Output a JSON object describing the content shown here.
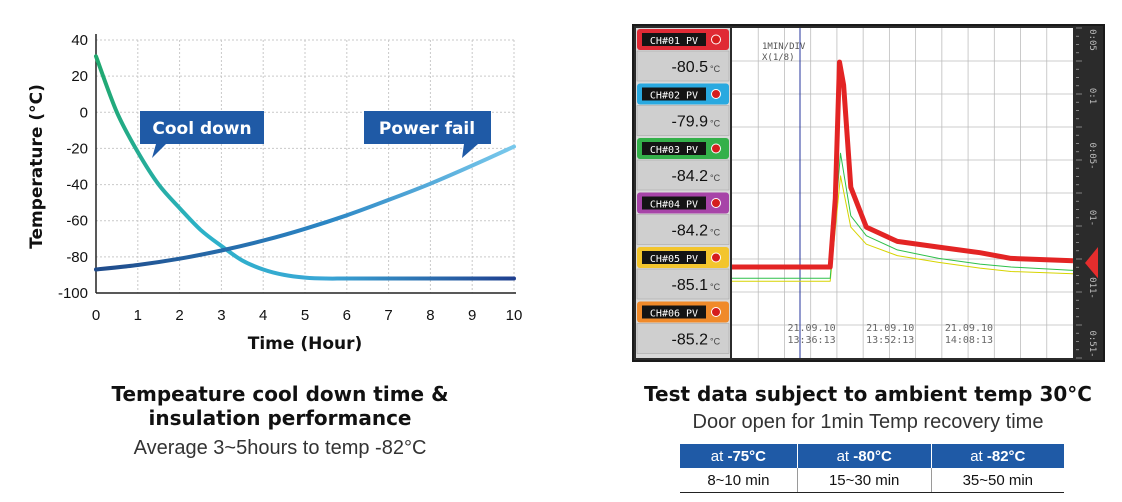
{
  "chart_data": [
    {
      "type": "line",
      "ylabel": "Temperature (°C)",
      "xlabel": "Time (Hour)",
      "xlim": [
        0,
        10
      ],
      "ylim": [
        -100,
        40
      ],
      "x_ticks": [
        "0",
        "1",
        "2",
        "3",
        "4",
        "5",
        "6",
        "7",
        "8",
        "9",
        "10"
      ],
      "y_ticks": [
        "40",
        "20",
        "0",
        "-20",
        "-40",
        "-60",
        "-80",
        "-100"
      ],
      "grid": true,
      "series": [
        {
          "name": "Cool down",
          "x": [
            0,
            0.5,
            1,
            1.5,
            2,
            2.5,
            3,
            3.5,
            4,
            4.5,
            5,
            5.5,
            6,
            7,
            8,
            9,
            10
          ],
          "y": [
            31,
            0,
            -22,
            -40,
            -53,
            -65,
            -74,
            -82,
            -87,
            -90,
            -91.5,
            -92,
            -92,
            -92,
            -92,
            -92,
            -92
          ],
          "color": "#1fa07a"
        },
        {
          "name": "Power fail",
          "x": [
            0,
            1,
            2,
            3,
            4,
            5,
            6,
            7,
            8,
            9,
            10
          ],
          "y": [
            -87,
            -84.5,
            -81,
            -76.5,
            -71,
            -64.5,
            -57,
            -48.5,
            -39.5,
            -29.5,
            -19
          ],
          "color": "#2a7fc0"
        }
      ]
    },
    {
      "type": "line",
      "annotation_scale": [
        "1MIN/DIV",
        "X(1/8)"
      ],
      "x_ticks": [
        [
          "21.09.10",
          "13:36:13"
        ],
        [
          "21.09.10",
          "13:52:13"
        ],
        [
          "21.09.10",
          "14:08:13"
        ]
      ],
      "right_scale": [
        "0:05",
        "0:1",
        "0:05-",
        "01-",
        "011-",
        "0:51-"
      ],
      "series": [
        {
          "name": "CH#01",
          "x": [
            0,
            9.5,
            10,
            10.4,
            10.8,
            11.5,
            13,
            16,
            20,
            24,
            27,
            33
          ],
          "y": [
            -84.0,
            -84.0,
            -72,
            -48,
            -52,
            -70,
            -77,
            -79.5,
            -80.5,
            -81.5,
            -82.5,
            -82.9
          ],
          "color": "#e32424"
        },
        {
          "name": "CH#03",
          "x": [
            0,
            9.5,
            10.5,
            11.5,
            13,
            16,
            20,
            24,
            27,
            33
          ],
          "y": [
            -86.0,
            -86.0,
            -64,
            -75,
            -78.5,
            -81,
            -82.5,
            -83.5,
            -84.0,
            -84.6
          ],
          "color": "#2ec04a"
        },
        {
          "name": "CH#05",
          "x": [
            0,
            9.5,
            10.5,
            11.5,
            13,
            16,
            20,
            24,
            27,
            33
          ],
          "y": [
            -86.5,
            -86.5,
            -68,
            -77,
            -80,
            -82,
            -83.2,
            -84.2,
            -84.8,
            -85.2
          ],
          "color": "#d7d400"
        }
      ],
      "channels": [
        {
          "label": "CH#01 PV",
          "value": "-80.5",
          "unit": "°C",
          "color": "#e02a35"
        },
        {
          "label": "CH#02 PV",
          "value": "-79.9",
          "unit": "°C",
          "color": "#29a9e0"
        },
        {
          "label": "CH#03 PV",
          "value": "-84.2",
          "unit": "°C",
          "color": "#34b04a"
        },
        {
          "label": "CH#04 PV",
          "value": "-84.2",
          "unit": "°C",
          "color": "#a744a8"
        },
        {
          "label": "CH#05 PV",
          "value": "-85.1",
          "unit": "°C",
          "color": "#f3c52d"
        },
        {
          "label": "CH#06 PV",
          "value": "-85.2",
          "unit": "°C",
          "color": "#f08a2a"
        }
      ]
    }
  ],
  "left_callouts": {
    "cool_down": "Cool down",
    "power_fail": "Power fail"
  },
  "left_caption": {
    "title_line1": "Tempeature cool down time &",
    "title_line2": "insulation performance",
    "subtitle": "Average 3~5hours to temp -82°C"
  },
  "right_caption": {
    "title": "Test data subject to ambient temp 30°C",
    "subtitle": "Door open for 1min Temp recovery time"
  },
  "table": {
    "headers": [
      {
        "prefix": "at ",
        "value": "-75°C"
      },
      {
        "prefix": "at ",
        "value": "-80°C"
      },
      {
        "prefix": "at ",
        "value": "-82°C"
      }
    ],
    "row": [
      "8~10 min",
      "15~30 min",
      "35~50 min"
    ]
  },
  "colors": {
    "callout": "#1f5aa6",
    "table_header": "#1f5aa6"
  }
}
